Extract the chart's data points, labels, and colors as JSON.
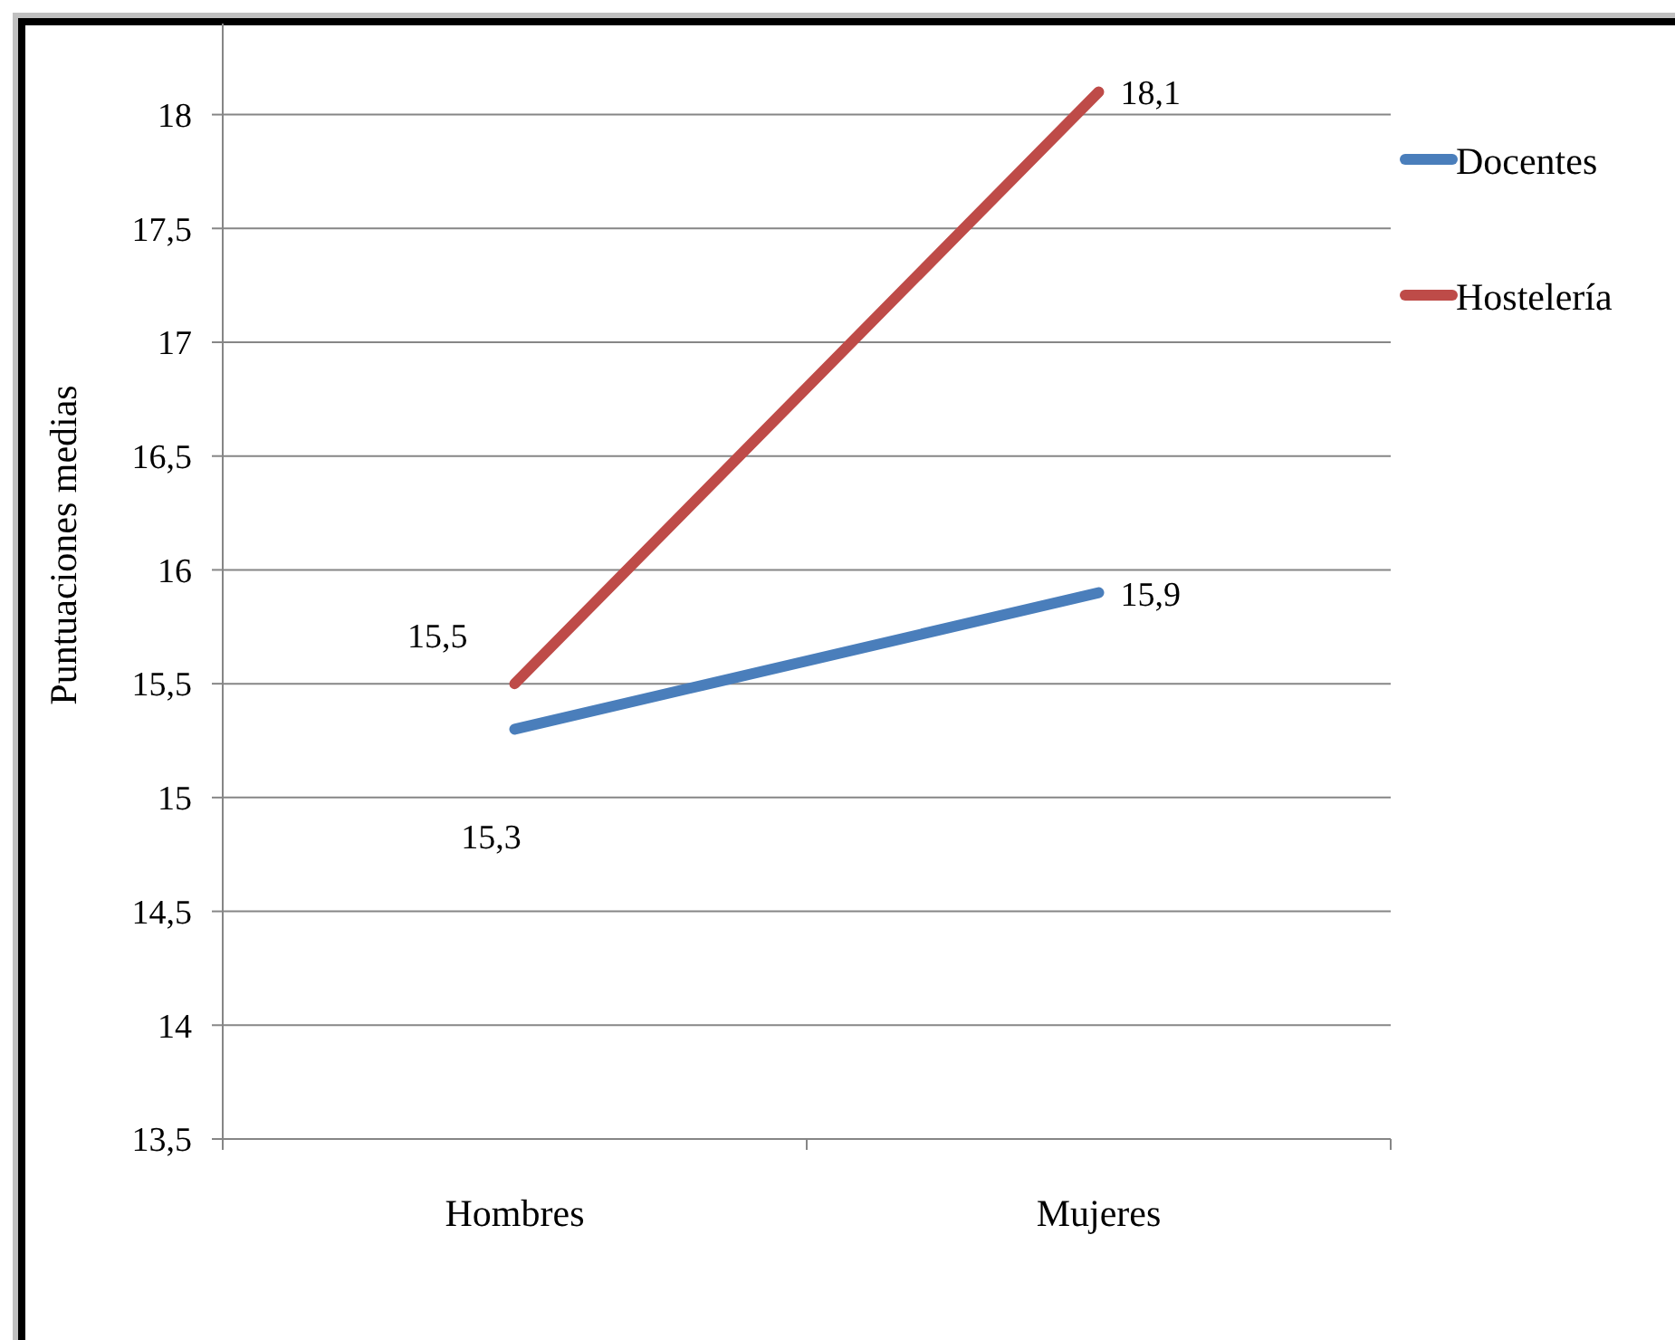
{
  "chart_data": {
    "type": "line",
    "ylabel": "Puntuaciones medias",
    "categories": [
      "Hombres",
      "Mujeres"
    ],
    "series": [
      {
        "name": "Docentes",
        "color": "#4a7ebb",
        "values": [
          15.3,
          15.9
        ],
        "value_labels": [
          "15,3",
          "15,9"
        ]
      },
      {
        "name": "Hostelería",
        "color": "#be4b48",
        "values": [
          15.5,
          18.1
        ],
        "value_labels": [
          "15,5",
          "18,1"
        ]
      }
    ],
    "ylim": [
      13.5,
      18.4
    ],
    "yticks": [
      {
        "value": 13.5,
        "label": "13,5"
      },
      14,
      {
        "value": 14.5,
        "label": "14,5"
      },
      15,
      {
        "value": 15.5,
        "label": "15,5"
      },
      16,
      {
        "value": 16.5,
        "label": "16,5"
      },
      17,
      {
        "value": 17.5,
        "label": "17,5"
      },
      18
    ],
    "grid": "y",
    "legend": "right"
  }
}
